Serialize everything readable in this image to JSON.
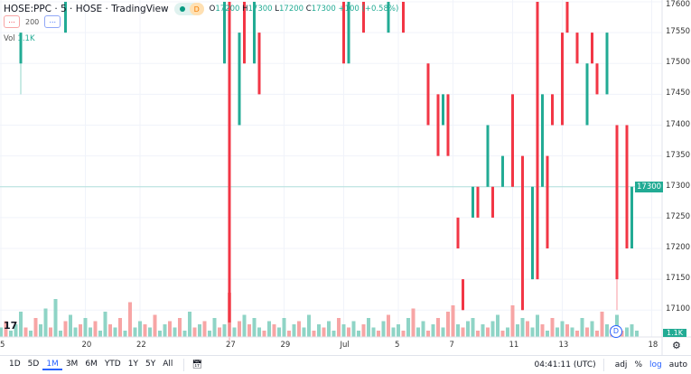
{
  "header": {
    "symbol": "HOSE:PPC",
    "interval": "5",
    "exchange": "HOSE",
    "source": "TradingView",
    "status_badge": "D",
    "o_label": "O",
    "o": "17200",
    "h_label": "H",
    "h": "17300",
    "l_label": "L",
    "l": "17200",
    "c_label": "C",
    "c": "17300",
    "change": "+100 (+0.58%)"
  },
  "indicators": {
    "btn1": "...",
    "value": "200",
    "btn2": "..."
  },
  "volume_legend": {
    "label": "Vol",
    "value": "1.1K"
  },
  "colors": {
    "up": "#22ab94",
    "down": "#f23645",
    "up_vol": "#8fd4c6",
    "down_vol": "#f7a5a5",
    "accent": "#2962ff"
  },
  "chart_data": {
    "type": "candlestick",
    "ylim": [
      17100,
      17600
    ],
    "y_ticks": [
      "17600",
      "17550",
      "17500",
      "17450",
      "17400",
      "17350",
      "17300",
      "17250",
      "17200",
      "17150",
      "17100"
    ],
    "last_price": "17300",
    "last_volume": "1.1K",
    "x_ticks": [
      {
        "label": "5",
        "bar": 0
      },
      {
        "label": "20",
        "bar": 17
      },
      {
        "label": "22",
        "bar": 28
      },
      {
        "label": "27",
        "bar": 46
      },
      {
        "label": "29",
        "bar": 57
      },
      {
        "label": "Jul",
        "bar": 69
      },
      {
        "label": "5",
        "bar": 80
      },
      {
        "label": "7",
        "bar": 91
      },
      {
        "label": "11",
        "bar": 103
      },
      {
        "label": "13",
        "bar": 113
      },
      {
        "label": "18",
        "bar": 131
      }
    ],
    "candles": [
      [
        4,
        17500,
        17550,
        17450,
        17550
      ],
      [
        13,
        17550,
        17600,
        17550,
        17600
      ],
      [
        45,
        17500,
        17600,
        17500,
        17600
      ],
      [
        46,
        17600,
        17600,
        17050,
        17080
      ],
      [
        48,
        17400,
        17550,
        17400,
        17550
      ],
      [
        49,
        17600,
        17600,
        17500,
        17500
      ],
      [
        51,
        17500,
        17600,
        17500,
        17600
      ],
      [
        52,
        17550,
        17550,
        17450,
        17450
      ],
      [
        69,
        17600,
        17600,
        17500,
        17500
      ],
      [
        70,
        17500,
        17600,
        17500,
        17600
      ],
      [
        73,
        17600,
        17600,
        17550,
        17550
      ],
      [
        78,
        17550,
        17600,
        17550,
        17600
      ],
      [
        81,
        17600,
        17600,
        17550,
        17550
      ],
      [
        86,
        17500,
        17500,
        17400,
        17400
      ],
      [
        88,
        17450,
        17450,
        17350,
        17350
      ],
      [
        89,
        17400,
        17450,
        17400,
        17450
      ],
      [
        90,
        17450,
        17450,
        17350,
        17350
      ],
      [
        92,
        17250,
        17250,
        17200,
        17200
      ],
      [
        93,
        17150,
        17150,
        17100,
        17100
      ],
      [
        95,
        17250,
        17300,
        17250,
        17300
      ],
      [
        96,
        17300,
        17300,
        17250,
        17250
      ],
      [
        98,
        17300,
        17400,
        17300,
        17400
      ],
      [
        99,
        17300,
        17300,
        17250,
        17250
      ],
      [
        101,
        17300,
        17350,
        17300,
        17350
      ],
      [
        103,
        17450,
        17450,
        17300,
        17300
      ],
      [
        105,
        17350,
        17350,
        17100,
        17100
      ],
      [
        107,
        17150,
        17300,
        17150,
        17300
      ],
      [
        108,
        17600,
        17600,
        17150,
        17150
      ],
      [
        109,
        17300,
        17450,
        17300,
        17450
      ],
      [
        110,
        17350,
        17350,
        17200,
        17200
      ],
      [
        111,
        17450,
        17450,
        17400,
        17400
      ],
      [
        113,
        17550,
        17550,
        17400,
        17400
      ],
      [
        114,
        17600,
        17600,
        17550,
        17550
      ],
      [
        116,
        17550,
        17550,
        17500,
        17500
      ],
      [
        118,
        17400,
        17500,
        17400,
        17500
      ],
      [
        119,
        17550,
        17550,
        17500,
        17500
      ],
      [
        120,
        17500,
        17500,
        17450,
        17450
      ],
      [
        122,
        17450,
        17550,
        17450,
        17550
      ],
      [
        124,
        17400,
        17400,
        17100,
        17150
      ],
      [
        126,
        17400,
        17400,
        17200,
        17200
      ],
      [
        127,
        17200,
        17300,
        17200,
        17300
      ]
    ],
    "volume": [
      3,
      5,
      2,
      4,
      8,
      3,
      2,
      6,
      4,
      9,
      3,
      12,
      2,
      5,
      7,
      3,
      4,
      6,
      3,
      5,
      2,
      8,
      4,
      3,
      6,
      2,
      11,
      3,
      5,
      4,
      3,
      7,
      2,
      4,
      5,
      3,
      6,
      2,
      8,
      3,
      4,
      5,
      2,
      6,
      3,
      4,
      14,
      3,
      5,
      7,
      4,
      6,
      3,
      2,
      5,
      4,
      3,
      6,
      2,
      4,
      5,
      3,
      7,
      2,
      4,
      3,
      5,
      2,
      6,
      4,
      3,
      5,
      2,
      4,
      6,
      3,
      2,
      5,
      7,
      3,
      4,
      2,
      6,
      9,
      3,
      5,
      2,
      4,
      6,
      3,
      8,
      10,
      4,
      3,
      5,
      6,
      2,
      4,
      3,
      5,
      7,
      2,
      3,
      10,
      4,
      6,
      5,
      3,
      7,
      4,
      2,
      6,
      3,
      5,
      4,
      3,
      2,
      6,
      3,
      5,
      2,
      8,
      4,
      3,
      7,
      2,
      3,
      4,
      2
    ],
    "volume_up": [
      1,
      0,
      1,
      1,
      1,
      0,
      1,
      0,
      1,
      1,
      0,
      1,
      1,
      0,
      1,
      1,
      0,
      1,
      1,
      0,
      1,
      1,
      0,
      1,
      0,
      1,
      0,
      1,
      1,
      0,
      1,
      0,
      1,
      1,
      0,
      1,
      0,
      1,
      1,
      0,
      1,
      0,
      1,
      1,
      0,
      1,
      0,
      1,
      0,
      1,
      0,
      1,
      1,
      0,
      1,
      0,
      1,
      1,
      0,
      1,
      0,
      1,
      1,
      0,
      1,
      0,
      1,
      1,
      0,
      1,
      0,
      1,
      1,
      0,
      1,
      1,
      0,
      1,
      0,
      1,
      1,
      0,
      1,
      0,
      1,
      1,
      0,
      1,
      0,
      1,
      0,
      0,
      1,
      0,
      1,
      1,
      0,
      1,
      0,
      1,
      1,
      0,
      1,
      0,
      1,
      1,
      0,
      1,
      1,
      0,
      1,
      0,
      1,
      1,
      0,
      1,
      0,
      1,
      0,
      1,
      0,
      0,
      1,
      0,
      1,
      0,
      1,
      1,
      1
    ]
  },
  "time": {
    "clock": "04:41:11 (UTC)"
  },
  "bottom": {
    "ranges": [
      "1D",
      "5D",
      "1M",
      "3M",
      "6M",
      "YTD",
      "1Y",
      "5Y",
      "All"
    ],
    "active": "1M",
    "adj": "adj",
    "pct": "%",
    "log": "log",
    "auto": "auto"
  }
}
